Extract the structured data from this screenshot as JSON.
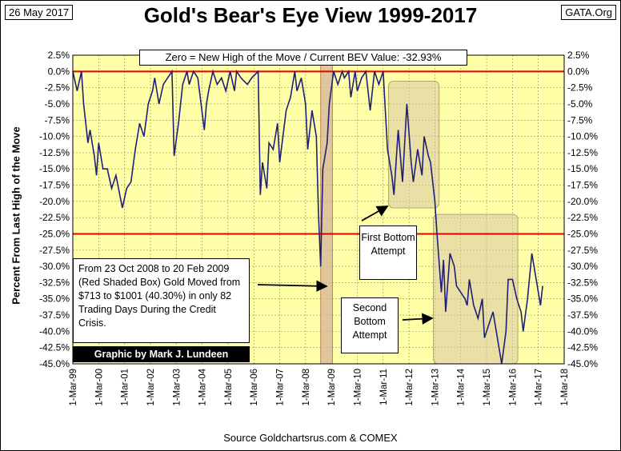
{
  "header": {
    "date_label": "26 May 2017",
    "source_label": "GATA.Org"
  },
  "colors": {
    "plot_background": "#ffffa8",
    "series_line": "#1f1f7a",
    "reference_line": "#e00000",
    "shaded_box": "#d9b89a",
    "bottom_box": "#d9c7a6"
  },
  "chart_data": {
    "type": "line",
    "title": "Gold's Bear's Eye View 1999-2017",
    "subtitle": "Zero = New High of the Move / Current BEV Value:  -32.93%",
    "ylabel": "Percent  From Last High of the Move",
    "xlabel": "",
    "source": "Source Goldchartsrus.com & COMEX",
    "ylim": [
      -45,
      2.5
    ],
    "y_ticks": [
      "2.5%",
      "0.0%",
      "-2.5%",
      "-5.0%",
      "-7.5%",
      "-10.0%",
      "-12.5%",
      "-15.0%",
      "-17.5%",
      "-20.0%",
      "-22.5%",
      "-25.0%",
      "-27.5%",
      "-30.0%",
      "-32.5%",
      "-35.0%",
      "-37.5%",
      "-40.0%",
      "-42.5%",
      "-45.0%"
    ],
    "x_ticks": [
      "1-Mar-99",
      "1-Mar-00",
      "1-Mar-01",
      "1-Mar-02",
      "1-Mar-03",
      "1-Mar-04",
      "1-Mar-05",
      "1-Mar-06",
      "1-Mar-07",
      "1-Mar-08",
      "1-Mar-09",
      "1-Mar-10",
      "1-Mar-11",
      "1-Mar-12",
      "1-Mar-13",
      "1-Mar-14",
      "1-Mar-15",
      "1-Mar-16",
      "1-Mar-17",
      "1-Mar-18"
    ],
    "reference_lines": [
      0,
      -25
    ],
    "grid": true,
    "series": [
      {
        "x": [
          "1999-03",
          "1999-05",
          "1999-07",
          "1999-08",
          "1999-10",
          "1999-11",
          "2000-01",
          "2000-02",
          "2000-03",
          "2000-05",
          "2000-07",
          "2000-09",
          "2000-11",
          "2001-02",
          "2001-04",
          "2001-06",
          "2001-08",
          "2001-10",
          "2001-12",
          "2002-02",
          "2002-04",
          "2002-05",
          "2002-07",
          "2002-09",
          "2002-11",
          "2003-01",
          "2003-02",
          "2003-04",
          "2003-06",
          "2003-08",
          "2003-09",
          "2003-11",
          "2004-01",
          "2004-04",
          "2004-05",
          "2004-06",
          "2004-08",
          "2004-10",
          "2004-12",
          "2005-02",
          "2005-04",
          "2005-06",
          "2005-07",
          "2005-09",
          "2005-12",
          "2006-02",
          "2006-05",
          "2006-06",
          "2006-07",
          "2006-09",
          "2006-10",
          "2006-12",
          "2007-02",
          "2007-03",
          "2007-06",
          "2007-08",
          "2007-10",
          "2007-11",
          "2008-01",
          "2008-03",
          "2008-04",
          "2008-06",
          "2008-08",
          "2008-09",
          "2008-10",
          "2008-11",
          "2009-01",
          "2009-02",
          "2009-04",
          "2009-06",
          "2009-08",
          "2009-09",
          "2009-11",
          "2009-12",
          "2010-02",
          "2010-03",
          "2010-05",
          "2010-07",
          "2010-09",
          "2010-11",
          "2011-01",
          "2011-03",
          "2011-05",
          "2011-07",
          "2011-08",
          "2011-09",
          "2011-10",
          "2011-12",
          "2012-02",
          "2012-04",
          "2012-05",
          "2012-07",
          "2012-09",
          "2012-10",
          "2012-12",
          "2013-01",
          "2013-03",
          "2013-04",
          "2013-06",
          "2013-07",
          "2013-08",
          "2013-10",
          "2013-12",
          "2014-01",
          "2014-03",
          "2014-05",
          "2014-06",
          "2014-07",
          "2014-09",
          "2014-11",
          "2015-01",
          "2015-02",
          "2015-04",
          "2015-06",
          "2015-08",
          "2015-10",
          "2015-12",
          "2016-01",
          "2016-03",
          "2016-05",
          "2016-07",
          "2016-08",
          "2016-10",
          "2016-12",
          "2017-01",
          "2017-03",
          "2017-04",
          "2017-05"
        ],
        "values": [
          0,
          -3,
          0,
          -5,
          -11,
          -9,
          -13,
          -16,
          -11,
          -15,
          -15,
          -18,
          -16,
          -21,
          -18,
          -17,
          -12,
          -8,
          -10,
          -5,
          -3,
          -1,
          -5,
          -2,
          -1,
          0,
          -13,
          -8,
          -2,
          0,
          -2,
          0,
          -1,
          -9,
          -5,
          -3,
          0,
          -2,
          -1,
          -3,
          0,
          -3,
          0,
          -1,
          -2,
          -1,
          0,
          -19,
          -14,
          -18,
          -11,
          -12,
          -8,
          -14,
          -6,
          -4,
          0,
          -3,
          -1,
          -5,
          -12,
          -6,
          -10,
          -22,
          -30,
          -15,
          -11,
          -5,
          0,
          -2,
          0,
          -1,
          0,
          -4,
          0,
          -3,
          -1,
          0,
          -6,
          0,
          -2,
          0,
          -12,
          -16,
          -19,
          -14,
          -9,
          -17,
          -5,
          -14,
          -17,
          -12,
          -16,
          -10,
          -13,
          -14,
          -20,
          -25,
          -34,
          -29,
          -37,
          -28,
          -30,
          -33,
          -34,
          -35,
          -36,
          -32,
          -36,
          -38,
          -35,
          -41,
          -39,
          -37,
          -41,
          -45,
          -40,
          -32,
          -32,
          -35,
          -37,
          -40,
          -35,
          -28,
          -30,
          -34,
          -36,
          -33
        ]
      }
    ],
    "annotations": [
      "From 23 Oct 2008 to 20 Feb 2009 (Red Shaded Box)  Gold Moved from $713 to $1001 (40.30%) in only 82 Trading Days During the Credit Crisis.",
      "First Bottom Attempt",
      "Second Bottom Attempt"
    ],
    "credit": "Graphic by Mark J. Lundeen"
  }
}
